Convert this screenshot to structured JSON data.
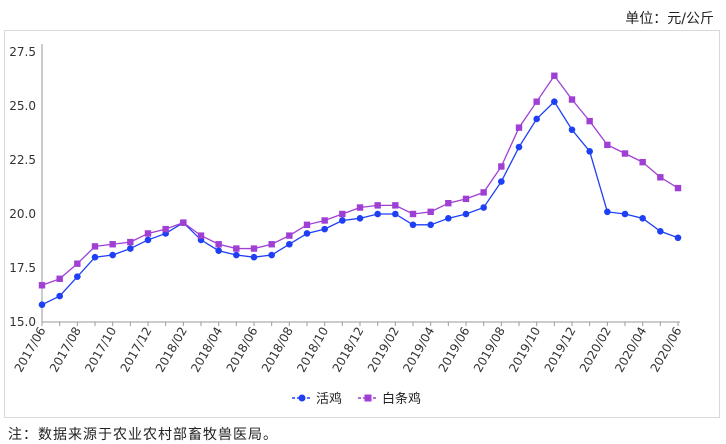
{
  "unit_label": "单位：元/公斤",
  "note": "注：数据来源于农业农村部畜牧兽医局。",
  "chart_data": {
    "type": "line",
    "x": [
      "2017/06",
      "2017/07",
      "2017/08",
      "2017/09",
      "2017/10",
      "2017/11",
      "2017/12",
      "2018/01",
      "2018/02",
      "2018/03",
      "2018/04",
      "2018/05",
      "2018/06",
      "2018/07",
      "2018/08",
      "2018/09",
      "2018/10",
      "2018/11",
      "2018/12",
      "2019/01",
      "2019/02",
      "2019/03",
      "2019/04",
      "2019/05",
      "2019/06",
      "2019/07",
      "2019/08",
      "2019/09",
      "2019/10",
      "2019/11",
      "2019/12",
      "2020/01",
      "2020/02",
      "2020/03",
      "2020/04",
      "2020/05",
      "2020/06"
    ],
    "x_tick_labels": [
      "2017/06",
      "2017/08",
      "2017/10",
      "2017/12",
      "2018/02",
      "2018/04",
      "2018/06",
      "2018/08",
      "2018/10",
      "2018/12",
      "2019/02",
      "2019/04",
      "2019/06",
      "2019/08",
      "2019/10",
      "2019/12",
      "2020/02",
      "2020/04",
      "2020/06"
    ],
    "y_ticks": [
      "15.0",
      "17.5",
      "20.0",
      "22.5",
      "25.0",
      "27.5"
    ],
    "ylim": [
      15.0,
      27.5
    ],
    "grid": false,
    "legend_position": "bottom",
    "series": [
      {
        "name": "活鸡",
        "color": "#1f3ff5",
        "marker": "circle",
        "values": [
          15.8,
          16.2,
          17.1,
          18.0,
          18.1,
          18.4,
          18.8,
          19.1,
          19.6,
          18.8,
          18.3,
          18.1,
          18.0,
          18.1,
          18.6,
          19.1,
          19.3,
          19.7,
          19.8,
          20.0,
          20.0,
          19.5,
          19.5,
          19.8,
          20.0,
          20.3,
          21.5,
          23.1,
          24.4,
          25.2,
          23.9,
          22.9,
          20.1,
          20.0,
          19.8,
          19.2,
          18.9
        ]
      },
      {
        "name": "白条鸡",
        "color": "#a03fd4",
        "marker": "square",
        "values": [
          16.7,
          17.0,
          17.7,
          18.5,
          18.6,
          18.7,
          19.1,
          19.3,
          19.6,
          19.0,
          18.6,
          18.4,
          18.4,
          18.6,
          19.0,
          19.5,
          19.7,
          20.0,
          20.3,
          20.4,
          20.4,
          20.0,
          20.1,
          20.5,
          20.7,
          21.0,
          22.2,
          24.0,
          25.2,
          26.4,
          25.3,
          24.3,
          23.2,
          22.8,
          22.4,
          21.7,
          21.2
        ]
      }
    ]
  }
}
